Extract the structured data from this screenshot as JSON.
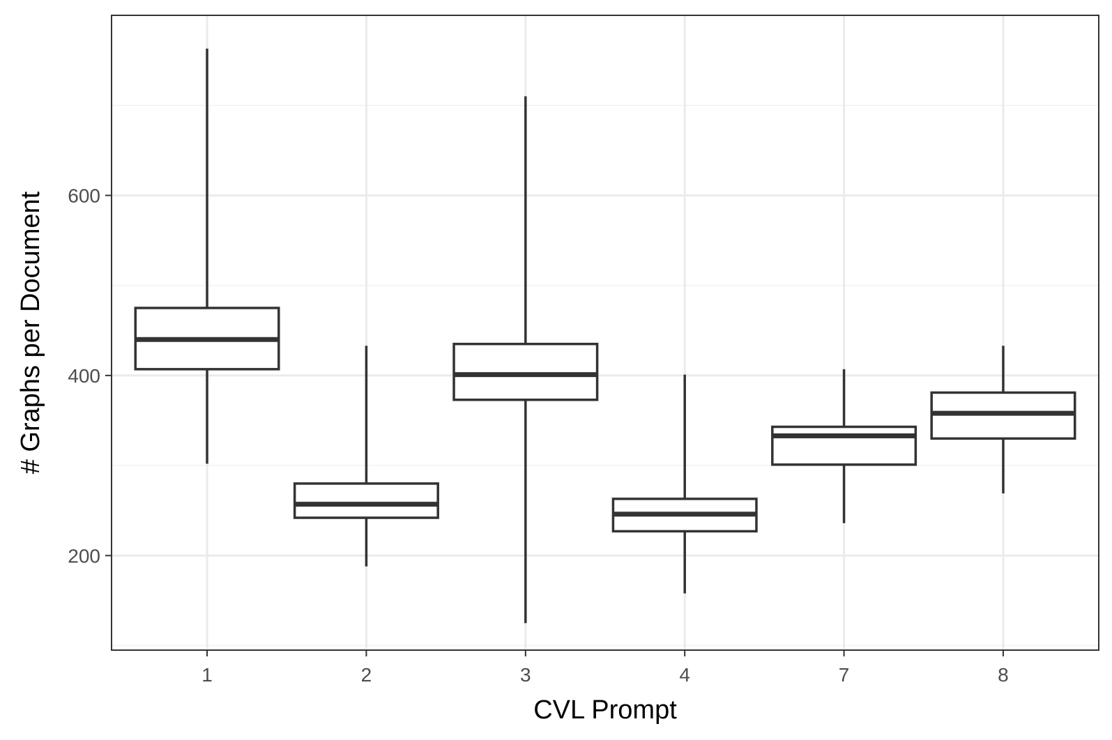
{
  "chart_data": {
    "type": "boxplot",
    "title": "",
    "xlabel": "CVL Prompt",
    "ylabel": "# Graphs per Document",
    "categories": [
      "1",
      "2",
      "3",
      "4",
      "7",
      "8"
    ],
    "boxes": [
      {
        "category": "1",
        "min": 302,
        "q1": 407,
        "median": 440,
        "q3": 475,
        "max": 763
      },
      {
        "category": "2",
        "min": 188,
        "q1": 242,
        "median": 257,
        "q3": 280,
        "max": 433
      },
      {
        "category": "3",
        "min": 125,
        "q1": 373,
        "median": 401,
        "q3": 435,
        "max": 710
      },
      {
        "category": "4",
        "min": 158,
        "q1": 227,
        "median": 246,
        "q3": 263,
        "max": 401
      },
      {
        "category": "7",
        "min": 236,
        "q1": 301,
        "median": 333,
        "q3": 343,
        "max": 407
      },
      {
        "category": "8",
        "min": 269,
        "q1": 330,
        "median": 358,
        "q3": 381,
        "max": 433
      }
    ],
    "ylim": [
      95,
      800
    ],
    "yticks": [
      200,
      400,
      600
    ],
    "ytick_labels": [
      "200",
      "400",
      "600"
    ],
    "grid": true,
    "legend": "none",
    "colors": {
      "box_stroke": "#333333",
      "box_fill": "#ffffff",
      "grid_major": "#ebebeb",
      "grid_minor": "#f2f2f2",
      "panel_border": "#333333",
      "tick_text": "#4d4d4d"
    }
  }
}
